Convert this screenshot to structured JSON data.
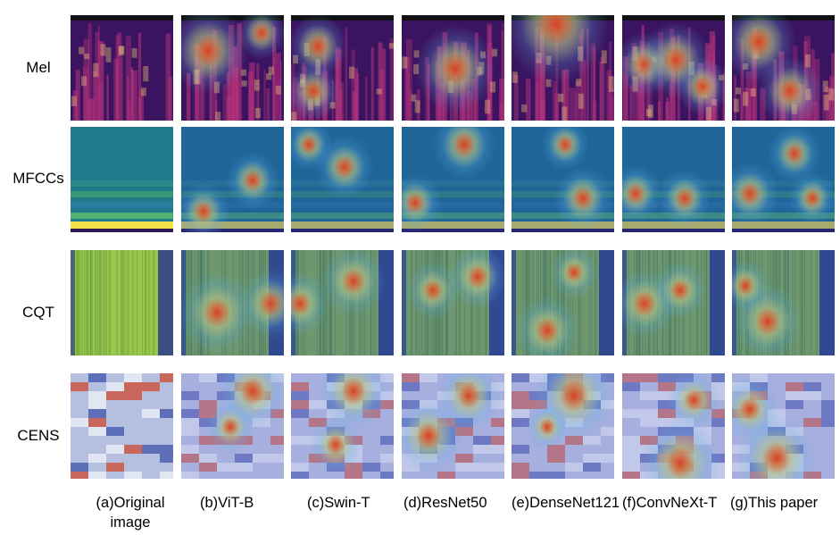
{
  "rows": [
    {
      "key": "mel",
      "label": "Mel"
    },
    {
      "key": "mfcc",
      "label": "MFCCs"
    },
    {
      "key": "cqt",
      "label": "CQT"
    },
    {
      "key": "cens",
      "label": "CENS"
    }
  ],
  "columns": [
    {
      "label": "(a)Original image"
    },
    {
      "label": "(b)ViT-B"
    },
    {
      "label": "(c)Swin-T"
    },
    {
      "label": "(d)ResNet50"
    },
    {
      "label": "(e)DenseNet121"
    },
    {
      "label": "(f)ConvNeXt-T"
    },
    {
      "label": "(g)This paper"
    }
  ],
  "colors": {
    "mel_base": "#3a1460",
    "mel_mid": "#b4327a",
    "mel_hot": "#f6c27a",
    "mfcc_base": "#1f7a8c",
    "mfcc_band": "#f2e34a",
    "cqt_base": "#9ac64a",
    "cqt_edge": "#2a3a8a",
    "cens_base": "#c9d3ea",
    "cens_red": "#c8432e",
    "cens_blue": "#3a4ea8",
    "heat_hot": "#d62a1e",
    "heat_warm": "#f4d03f",
    "heat_cool": "#5fb0e8"
  }
}
